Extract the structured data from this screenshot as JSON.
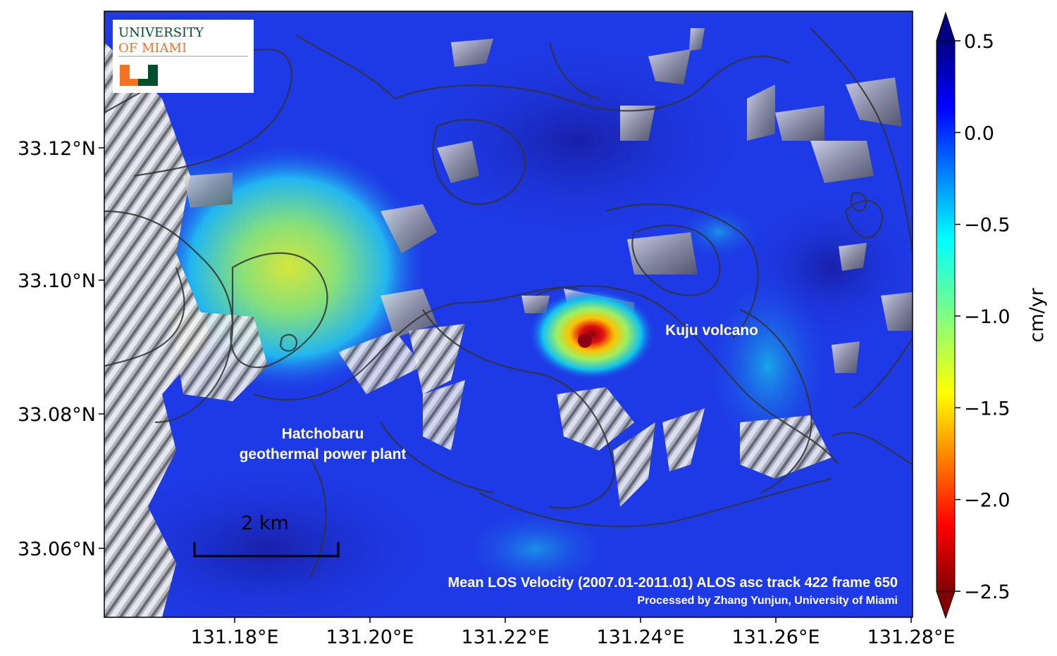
{
  "map": {
    "lat_ticks": [
      "33.12°N",
      "33.10°N",
      "33.08°N",
      "33.06°N"
    ],
    "lon_ticks": [
      "131.18°E",
      "131.20°E",
      "131.22°E",
      "131.24°E",
      "131.26°E",
      "131.28°E"
    ],
    "places": {
      "kuju": "Kuju volcano",
      "hatchobaru_line1": "Hatchobaru",
      "hatchobaru_line2": "geothermal power plant"
    },
    "scalebar_label": "2 km",
    "title_line1": "Mean LOS Velocity (2007.01-2011.01) ALOS asc track 422 frame 650",
    "title_line2": "Processed by Zhang Yunjun, University of Miami"
  },
  "colorbar": {
    "label": "cm/yr",
    "ticks": [
      "0.5",
      "0.0",
      "−0.5",
      "−1.0",
      "−1.5",
      "−2.0",
      "−2.5"
    ],
    "min": -2.5,
    "max": 0.5,
    "colormap": "jet",
    "extend": "both"
  },
  "logo": {
    "line1": "UNIVERSITY",
    "line2": "OF MIAMI",
    "green": "#005030",
    "orange": "#f47321"
  },
  "colors": {
    "background_blue": "#1e3ae6",
    "deep_blue": "#1a2ab4",
    "anomaly_red": "#a00010",
    "terrain_gray": "#b4b4b4",
    "contour": "#333333"
  }
}
